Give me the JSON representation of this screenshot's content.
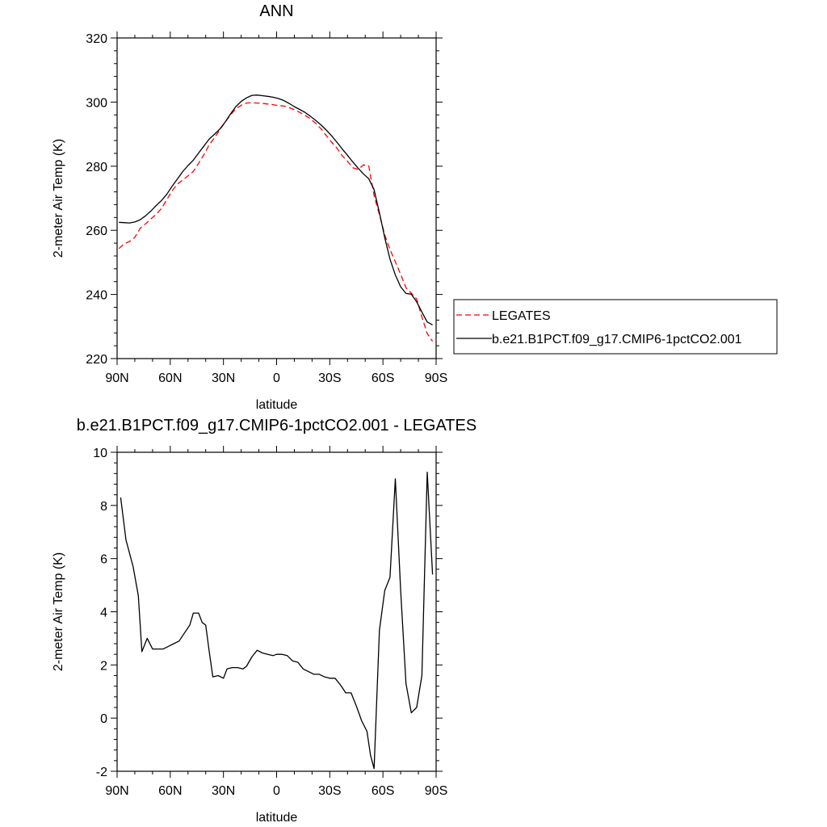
{
  "chart_data": [
    {
      "type": "line",
      "title": "ANN",
      "xlabel": "latitude",
      "ylabel": "2-meter Air Temp (K)",
      "xlim": [
        90,
        -90
      ],
      "ylim": [
        220,
        320
      ],
      "x_ticks": [
        {
          "value": 90,
          "label": "90N"
        },
        {
          "value": 60,
          "label": "60N"
        },
        {
          "value": 30,
          "label": "30N"
        },
        {
          "value": 0,
          "label": "0"
        },
        {
          "value": -30,
          "label": "30S"
        },
        {
          "value": -60,
          "label": "60S"
        },
        {
          "value": -90,
          "label": "90S"
        }
      ],
      "y_ticks": [
        220,
        240,
        260,
        280,
        300,
        320
      ],
      "legend_position": "right",
      "series": [
        {
          "name": "LEGATES",
          "color": "#ff0000",
          "dashed": true,
          "x": [
            89,
            86,
            83,
            80,
            77,
            74,
            71,
            68,
            65,
            62,
            59,
            56,
            53,
            50,
            47,
            44,
            41,
            38,
            35,
            32,
            29,
            26,
            23,
            20,
            17,
            14,
            11,
            8,
            5,
            2,
            -1,
            -4,
            -7,
            -10,
            -13,
            -16,
            -19,
            -22,
            -25,
            -28,
            -31,
            -34,
            -37,
            -40,
            -43,
            -46,
            -49,
            -52,
            -55,
            -58,
            -61,
            -64,
            -67,
            -70,
            -73,
            -76,
            -79,
            -82,
            -85,
            -88
          ],
          "values": [
            254.3,
            255.8,
            256.5,
            257.8,
            260.6,
            262.0,
            263.5,
            265.0,
            266.8,
            269.5,
            272.3,
            274.4,
            275.7,
            277.0,
            278.4,
            280.9,
            283.6,
            286.7,
            288.9,
            291.4,
            293.8,
            296.0,
            297.9,
            299.0,
            299.7,
            299.8,
            299.7,
            299.6,
            299.4,
            299.2,
            298.9,
            298.8,
            298.3,
            297.6,
            296.8,
            295.9,
            294.8,
            293.4,
            291.7,
            289.6,
            287.5,
            285.7,
            283.3,
            281.5,
            279.5,
            279.0,
            280.4,
            280.1,
            270.8,
            264.9,
            258.6,
            254.0,
            250.2,
            246.3,
            242.1,
            240.4,
            238.6,
            233.0,
            227.8,
            225.4
          ]
        },
        {
          "name": "b.e21.B1PCT.f09_g17.CMIP6-1pctCO2.001",
          "color": "#000000",
          "dashed": false,
          "x": [
            89,
            86,
            83,
            80,
            77,
            74,
            71,
            68,
            65,
            62,
            59,
            56,
            53,
            50,
            47,
            44,
            41,
            38,
            35,
            32,
            29,
            26,
            23,
            20,
            17,
            14,
            11,
            8,
            5,
            2,
            -1,
            -4,
            -7,
            -10,
            -13,
            -16,
            -19,
            -22,
            -25,
            -28,
            -31,
            -34,
            -37,
            -40,
            -43,
            -46,
            -49,
            -52,
            -55,
            -58,
            -61,
            -64,
            -67,
            -70,
            -73,
            -76,
            -79,
            -82,
            -85,
            -88
          ],
          "values": [
            262.5,
            262.4,
            262.3,
            262.6,
            263.3,
            264.5,
            266.0,
            267.7,
            269.3,
            271.2,
            273.7,
            276.0,
            278.3,
            280.2,
            281.9,
            284.1,
            286.3,
            288.5,
            290.0,
            291.6,
            293.8,
            296.3,
            298.6,
            300.2,
            301.3,
            302.1,
            302.2,
            302.0,
            301.8,
            301.5,
            301.1,
            300.5,
            299.6,
            298.6,
            297.7,
            296.8,
            295.6,
            294.3,
            292.9,
            291.3,
            289.5,
            287.5,
            285.4,
            283.4,
            281.3,
            279.4,
            277.6,
            276.1,
            272.7,
            265.5,
            257.7,
            251.0,
            246.1,
            242.4,
            240.3,
            240.1,
            237.7,
            234.5,
            231.4,
            230.5
          ]
        }
      ]
    },
    {
      "type": "line",
      "title": "b.e21.B1PCT.f09_g17.CMIP6-1pctCO2.001 - LEGATES",
      "xlabel": "latitude",
      "ylabel": "2-meter Air Temp (K)",
      "xlim": [
        90,
        -90
      ],
      "ylim": [
        -2,
        10
      ],
      "x_ticks": [
        {
          "value": 90,
          "label": "90N"
        },
        {
          "value": 60,
          "label": "60N"
        },
        {
          "value": 30,
          "label": "30N"
        },
        {
          "value": 0,
          "label": "0"
        },
        {
          "value": -30,
          "label": "30S"
        },
        {
          "value": -60,
          "label": "60S"
        },
        {
          "value": -90,
          "label": "90S"
        }
      ],
      "y_ticks": [
        -2,
        0,
        2,
        4,
        6,
        8,
        10
      ],
      "series": [
        {
          "color": "#000000",
          "x": [
            88,
            85,
            81,
            78,
            76,
            73,
            70,
            67,
            64,
            61,
            58,
            55,
            52,
            49,
            47,
            44,
            42,
            40,
            38,
            36,
            33,
            30,
            28,
            25,
            22,
            19,
            17,
            14,
            11,
            8,
            5,
            2,
            0,
            -3,
            -6,
            -9,
            -12,
            -15,
            -18,
            -21,
            -24,
            -27,
            -30,
            -33,
            -36,
            -39,
            -42,
            -45,
            -48,
            -51,
            -53,
            -55,
            -58,
            -61,
            -64,
            -67,
            -70,
            -73,
            -76,
            -79,
            -82,
            -85,
            -88
          ],
          "values": [
            8.3,
            6.7,
            5.7,
            4.6,
            2.5,
            3.0,
            2.6,
            2.6,
            2.6,
            2.7,
            2.8,
            2.9,
            3.2,
            3.5,
            3.95,
            3.95,
            3.6,
            3.5,
            2.5,
            1.55,
            1.6,
            1.5,
            1.85,
            1.9,
            1.9,
            1.85,
            1.95,
            2.3,
            2.55,
            2.45,
            2.4,
            2.35,
            2.4,
            2.4,
            2.35,
            2.15,
            2.1,
            1.85,
            1.75,
            1.65,
            1.65,
            1.55,
            1.5,
            1.5,
            1.25,
            0.95,
            0.95,
            0.45,
            -0.1,
            -0.5,
            -1.4,
            -1.9,
            3.3,
            4.8,
            5.3,
            9.0,
            4.8,
            1.3,
            0.2,
            0.4,
            1.6,
            9.25,
            5.4
          ]
        }
      ]
    }
  ]
}
